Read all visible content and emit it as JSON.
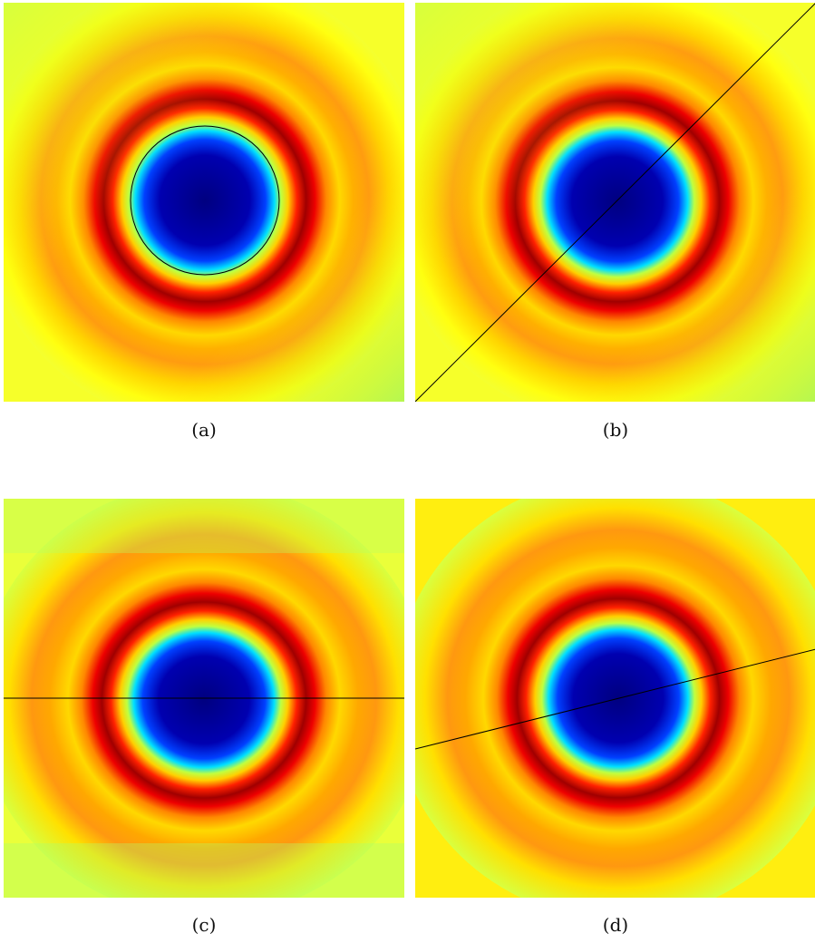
{
  "panels": [
    {
      "id": "a",
      "caption": "(a)",
      "overlay": "circle",
      "colors": {
        "outer": "#ffff00",
        "edge": "#9ef05a",
        "ring_mid": "#ff8a00",
        "ring_dark": "#b30000",
        "core": "#00009a",
        "cyan": "#00e5ff"
      }
    },
    {
      "id": "b",
      "caption": "(b)",
      "overlay": "diagonal-line"
    },
    {
      "id": "c",
      "caption": "(c)",
      "overlay": "horizontal-line"
    },
    {
      "id": "d",
      "caption": "(d)",
      "overlay": "tilted-line"
    }
  ]
}
